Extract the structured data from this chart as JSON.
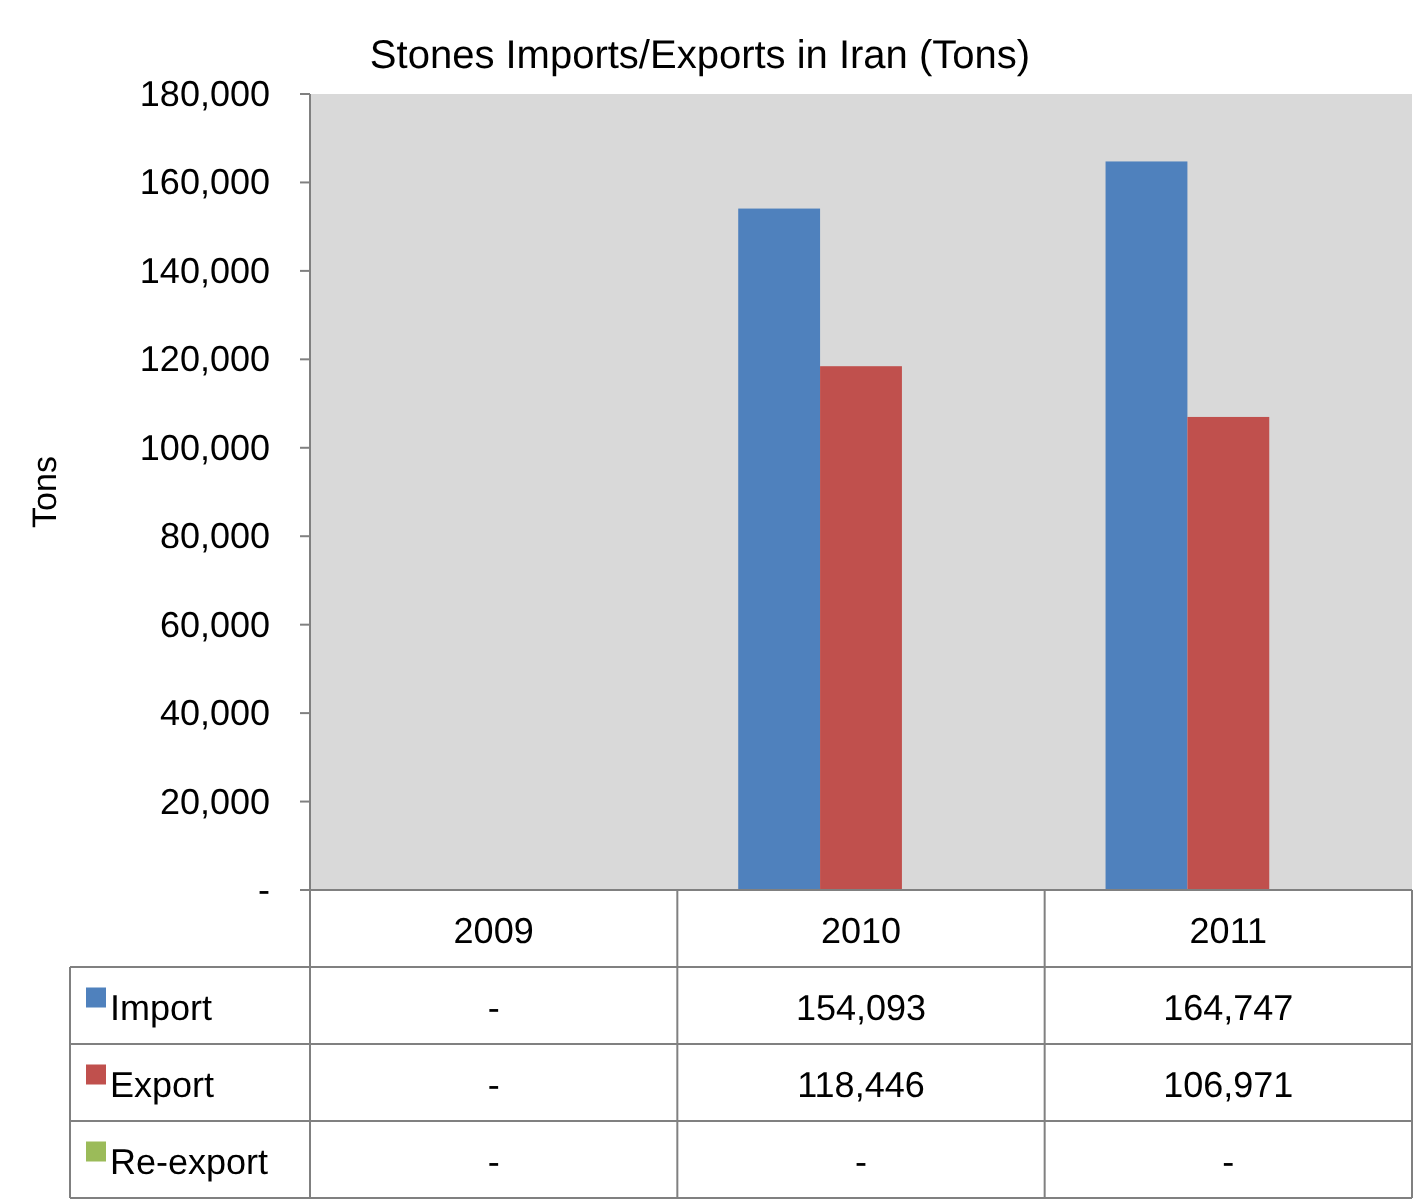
{
  "chart_data": {
    "type": "bar",
    "title": "Stones Imports/Exports  in Iran (Tons)",
    "ylabel": "Tons",
    "categories": [
      "2009",
      "2010",
      "2011"
    ],
    "series": [
      {
        "name": "Import",
        "color": "#4f81bd",
        "values": [
          0,
          154093,
          164747
        ],
        "value_labels": [
          "-",
          "154,093",
          "164,747"
        ]
      },
      {
        "name": "Export",
        "color": "#c0504d",
        "values": [
          0,
          118446,
          106971
        ],
        "value_labels": [
          "-",
          "118,446",
          "106,971"
        ]
      },
      {
        "name": "Re-export",
        "color": "#9bbb59",
        "values": [
          0,
          0,
          0
        ],
        "value_labels": [
          "-",
          "-",
          "-"
        ]
      }
    ],
    "ylim": [
      0,
      180000
    ],
    "yticks": [
      {
        "value": 0,
        "label": "-"
      },
      {
        "value": 20000,
        "label": "20,000"
      },
      {
        "value": 40000,
        "label": "40,000"
      },
      {
        "value": 60000,
        "label": "60,000"
      },
      {
        "value": 80000,
        "label": "80,000"
      },
      {
        "value": 100000,
        "label": "100,000"
      },
      {
        "value": 120000,
        "label": "120,000"
      },
      {
        "value": 140000,
        "label": "140,000"
      },
      {
        "value": 160000,
        "label": "160,000"
      },
      {
        "value": 180000,
        "label": "180,000"
      }
    ],
    "legend": "bottom"
  }
}
